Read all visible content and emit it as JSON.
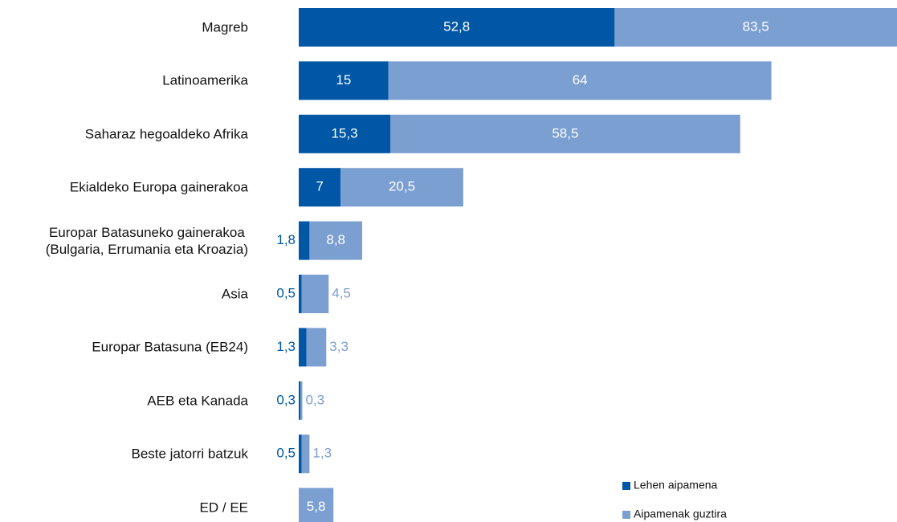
{
  "chart_data": {
    "type": "stacked-barh",
    "categories": [
      "Magreb",
      "Latinoamerika",
      "Saharaz hegoaldeko Afrika",
      "Ekialdeko Europa gainerakoa",
      "Europar Batasuneko gainerakoa\n(Bulgaria, Errumania eta Kroazia)",
      "Asia",
      "Europar Batasuna (EB24)",
      "AEB eta Kanada",
      "Beste jatorri batzuk",
      "ED / EE"
    ],
    "series": [
      {
        "name": "Lehen aipamena",
        "color": "#0057a6",
        "values": [
          52.8,
          15,
          15.3,
          7,
          1.8,
          0.5,
          1.3,
          0.3,
          0.5,
          null
        ],
        "value_labels": [
          "52,8",
          "15",
          "15,3",
          "7",
          "1,8",
          "0,5",
          "1,3",
          "0,3",
          "0,5",
          null
        ]
      },
      {
        "name": "Aipamenak guztira",
        "color": "#7b9fd1",
        "values": [
          83.5,
          64,
          58.5,
          20.5,
          8.8,
          4.5,
          3.3,
          0.3,
          1.3,
          5.8
        ],
        "value_labels": [
          "83,5",
          "64",
          "58,5",
          "20,5",
          "8,8",
          "4,5",
          "3,3",
          "0,3",
          "1,3",
          "5,8"
        ]
      }
    ],
    "legend": "bottom-right"
  }
}
